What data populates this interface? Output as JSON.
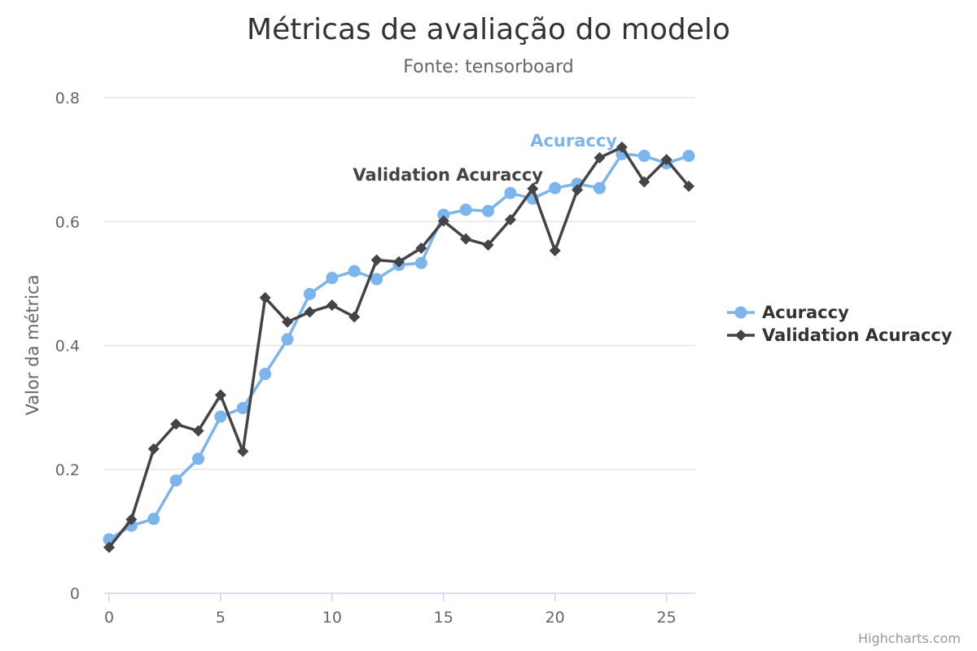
{
  "chart_data": {
    "type": "line",
    "title": "Métricas de avaliação do modelo",
    "subtitle": "Fonte: tensorboard",
    "xlabel": "",
    "ylabel": "Valor da métrica",
    "x": [
      0,
      1,
      2,
      3,
      4,
      5,
      6,
      7,
      8,
      9,
      10,
      11,
      12,
      13,
      14,
      15,
      16,
      17,
      18,
      19,
      20,
      21,
      22,
      23,
      24,
      25,
      26
    ],
    "xlim": [
      0,
      26
    ],
    "ylim": [
      0,
      0.8
    ],
    "xticks": [
      0,
      5,
      10,
      15,
      20,
      25
    ],
    "yticks": [
      0,
      0.2,
      0.4,
      0.6,
      0.8
    ],
    "xtick_labels": [
      "0",
      "5",
      "10",
      "15",
      "20",
      "25"
    ],
    "ytick_labels": [
      "0",
      "0.2",
      "0.4",
      "0.6",
      "0.8"
    ],
    "grid": true,
    "legend_position": "right",
    "series": [
      {
        "name": "Acuraccy",
        "color": "#7cb5ec",
        "marker": "circle",
        "values": [
          0.087,
          0.109,
          0.12,
          0.182,
          0.217,
          0.285,
          0.299,
          0.354,
          0.41,
          0.483,
          0.509,
          0.52,
          0.507,
          0.53,
          0.533,
          0.611,
          0.619,
          0.617,
          0.646,
          0.637,
          0.654,
          0.661,
          0.654,
          0.709,
          0.706,
          0.694,
          0.706
        ]
      },
      {
        "name": "Validation Acuraccy",
        "color": "#434348",
        "marker": "diamond",
        "values": [
          0.074,
          0.119,
          0.233,
          0.273,
          0.262,
          0.32,
          0.229,
          0.477,
          0.438,
          0.454,
          0.465,
          0.446,
          0.538,
          0.535,
          0.557,
          0.601,
          0.572,
          0.562,
          0.603,
          0.653,
          0.553,
          0.651,
          0.703,
          0.72,
          0.664,
          0.7,
          0.657
        ]
      }
    ]
  },
  "credits": "Highcharts.com"
}
